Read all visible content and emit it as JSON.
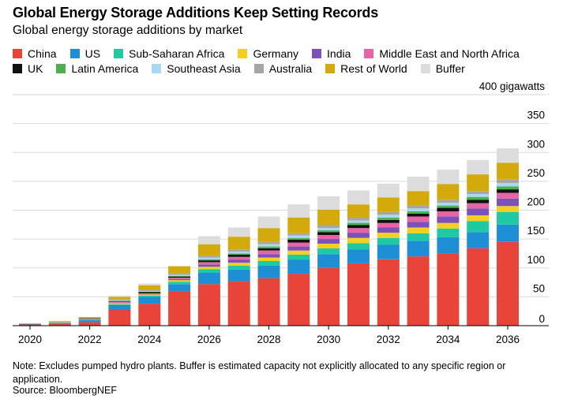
{
  "header": {
    "title": "Global Energy Storage Additions Keep Setting Records",
    "subtitle": "Global energy storage additions by market"
  },
  "footer": {
    "note": "Note: Excludes pumped hydro plants. Buffer is estimated capacity not explicitly allocated to any specific region or application.",
    "source": "Source: BloombergNEF"
  },
  "chart_data": {
    "type": "bar",
    "stacked": true,
    "title": "Global Energy Storage Additions Keep Setting Records",
    "subtitle": "Global energy storage additions by market",
    "ylabel": "gigawatts",
    "ylim": [
      0,
      400
    ],
    "y_ticks": [
      "400 gigawatts",
      "350",
      "300",
      "250",
      "200",
      "150",
      "100",
      "50",
      "0"
    ],
    "x_ticks": [
      "2020",
      "2022",
      "2024",
      "2026",
      "2028",
      "2030",
      "2032",
      "2034",
      "2036"
    ],
    "grid": true,
    "legend_position": "top",
    "categories": [
      "2020",
      "2021",
      "2022",
      "2023",
      "2024",
      "2025",
      "2026",
      "2027",
      "2028",
      "2029",
      "2030",
      "2031",
      "2032",
      "2033",
      "2034",
      "2035",
      "2036"
    ],
    "series": [
      {
        "name": "China",
        "color": "#e8443a",
        "values": [
          2,
          3,
          6,
          28,
          38,
          60,
          72,
          77,
          82,
          90,
          100,
          108,
          115,
          120,
          125,
          134,
          145
        ]
      },
      {
        "name": "US",
        "color": "#1e8fd5",
        "values": [
          1,
          2,
          4,
          8,
          12,
          12,
          20,
          20,
          22,
          24,
          24,
          24,
          25,
          27,
          28,
          28,
          30
        ]
      },
      {
        "name": "Sub-Saharan Africa",
        "color": "#1ec9a4",
        "values": [
          0,
          0,
          0,
          1,
          2,
          4,
          6,
          7,
          8,
          9,
          10,
          11,
          12,
          13,
          15,
          19,
          22
        ]
      },
      {
        "name": "Germany",
        "color": "#f5cf1e",
        "values": [
          0,
          1,
          1,
          2,
          2,
          3,
          4,
          5,
          6,
          7,
          8,
          9,
          9,
          10,
          10,
          10,
          10
        ]
      },
      {
        "name": "India",
        "color": "#7d52b8",
        "values": [
          0,
          0,
          0,
          1,
          1,
          2,
          4,
          5,
          6,
          7,
          8,
          9,
          9,
          10,
          11,
          12,
          13
        ]
      },
      {
        "name": "Middle East and North Africa",
        "color": "#e865a5",
        "values": [
          0,
          0,
          0,
          1,
          1,
          2,
          4,
          5,
          6,
          7,
          7,
          8,
          8,
          9,
          9,
          9,
          10
        ]
      },
      {
        "name": "UK",
        "color": "#111111",
        "values": [
          0,
          0,
          1,
          1,
          2,
          2,
          3,
          4,
          4,
          5,
          5,
          5,
          5,
          5,
          6,
          6,
          6
        ]
      },
      {
        "name": "Latin America",
        "color": "#4caf50",
        "values": [
          0,
          0,
          0,
          1,
          1,
          1,
          2,
          2,
          3,
          3,
          3,
          4,
          4,
          4,
          4,
          5,
          5
        ]
      },
      {
        "name": "Southeast Asia",
        "color": "#a9d9f2",
        "values": [
          0,
          0,
          0,
          1,
          1,
          2,
          3,
          3,
          4,
          4,
          4,
          4,
          5,
          5,
          5,
          5,
          6
        ]
      },
      {
        "name": "Australia",
        "color": "#a6a6a6",
        "values": [
          0,
          1,
          1,
          2,
          2,
          3,
          3,
          4,
          4,
          4,
          5,
          5,
          5,
          5,
          5,
          5,
          6
        ]
      },
      {
        "name": "Rest of World",
        "color": "#d4a90c",
        "values": [
          1,
          1,
          2,
          4,
          8,
          12,
          20,
          22,
          24,
          27,
          27,
          23,
          25,
          25,
          27,
          29,
          29
        ]
      },
      {
        "name": "Buffer",
        "color": "#dcdcdc",
        "values": [
          0,
          0,
          0,
          2,
          3,
          0,
          14,
          16,
          20,
          23,
          23,
          24,
          24,
          25,
          25,
          25,
          25
        ]
      }
    ]
  }
}
